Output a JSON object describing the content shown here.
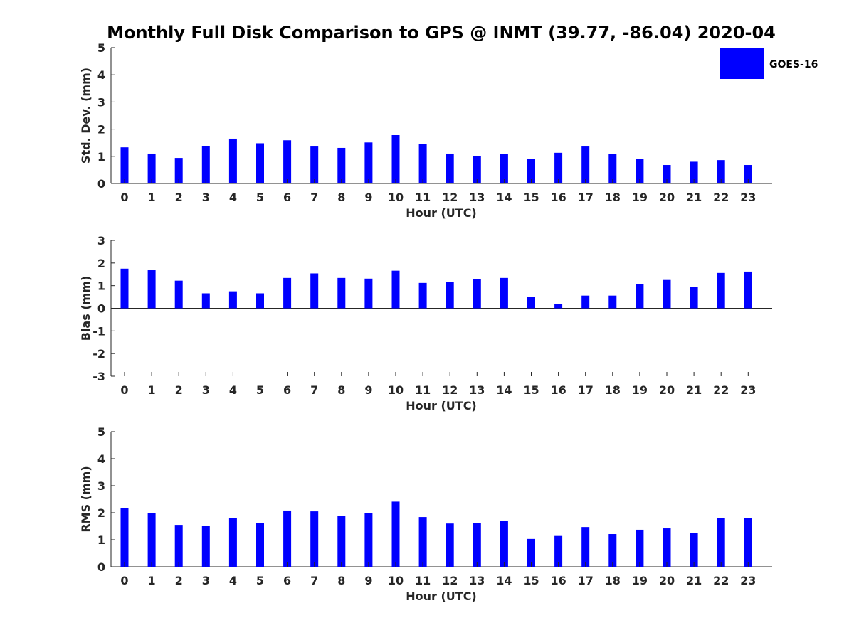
{
  "figure": {
    "title": "Monthly Full Disk Comparison to GPS @ INMT (39.77, -86.04) 2020-04",
    "legend": {
      "label": "GOES-16",
      "color": "#0000ff",
      "placement": "top-right"
    }
  },
  "chart_data": [
    {
      "type": "bar",
      "panel": "std-dev",
      "xlabel": "Hour (UTC)",
      "ylabel": "Std. Dev. (mm)",
      "ylim": [
        0,
        5
      ],
      "yticks": [
        0,
        1,
        2,
        3,
        4,
        5
      ],
      "categories": [
        "0",
        "1",
        "2",
        "3",
        "4",
        "5",
        "6",
        "7",
        "8",
        "9",
        "10",
        "11",
        "12",
        "13",
        "14",
        "15",
        "16",
        "17",
        "18",
        "19",
        "20",
        "21",
        "22",
        "23"
      ],
      "series": [
        {
          "name": "GOES-16",
          "color": "#0000ff",
          "values": [
            1.33,
            1.1,
            0.94,
            1.38,
            1.65,
            1.48,
            1.59,
            1.36,
            1.31,
            1.51,
            1.78,
            1.44,
            1.1,
            1.02,
            1.08,
            0.91,
            1.13,
            1.36,
            1.08,
            0.9,
            0.68,
            0.8,
            0.86,
            0.68
          ]
        }
      ]
    },
    {
      "type": "bar",
      "panel": "bias",
      "xlabel": "Hour (UTC)",
      "ylabel": "Bias (mm)",
      "ylim": [
        -3,
        3
      ],
      "yticks": [
        -3,
        -2,
        -1,
        0,
        1,
        2,
        3
      ],
      "categories": [
        "0",
        "1",
        "2",
        "3",
        "4",
        "5",
        "6",
        "7",
        "8",
        "9",
        "10",
        "11",
        "12",
        "13",
        "14",
        "15",
        "16",
        "17",
        "18",
        "19",
        "20",
        "21",
        "22",
        "23"
      ],
      "series": [
        {
          "name": "GOES-16",
          "color": "#0000ff",
          "values": [
            1.75,
            1.68,
            1.22,
            0.66,
            0.75,
            0.66,
            1.34,
            1.54,
            1.34,
            1.31,
            1.66,
            1.12,
            1.15,
            1.28,
            1.34,
            0.5,
            0.19,
            0.56,
            0.56,
            1.06,
            1.25,
            0.94,
            1.56,
            1.62
          ]
        }
      ]
    },
    {
      "type": "bar",
      "panel": "rms",
      "xlabel": "Hour (UTC)",
      "ylabel": "RMS (mm)",
      "ylim": [
        0,
        5
      ],
      "yticks": [
        0,
        1,
        2,
        3,
        4,
        5
      ],
      "categories": [
        "0",
        "1",
        "2",
        "3",
        "4",
        "5",
        "6",
        "7",
        "8",
        "9",
        "10",
        "11",
        "12",
        "13",
        "14",
        "15",
        "16",
        "17",
        "18",
        "19",
        "20",
        "21",
        "22",
        "23"
      ],
      "series": [
        {
          "name": "GOES-16",
          "color": "#0000ff",
          "values": [
            2.18,
            2.0,
            1.55,
            1.52,
            1.81,
            1.63,
            2.08,
            2.05,
            1.87,
            2.0,
            2.41,
            1.84,
            1.6,
            1.63,
            1.71,
            1.03,
            1.14,
            1.47,
            1.21,
            1.37,
            1.42,
            1.24,
            1.79,
            1.79
          ]
        }
      ]
    }
  ]
}
